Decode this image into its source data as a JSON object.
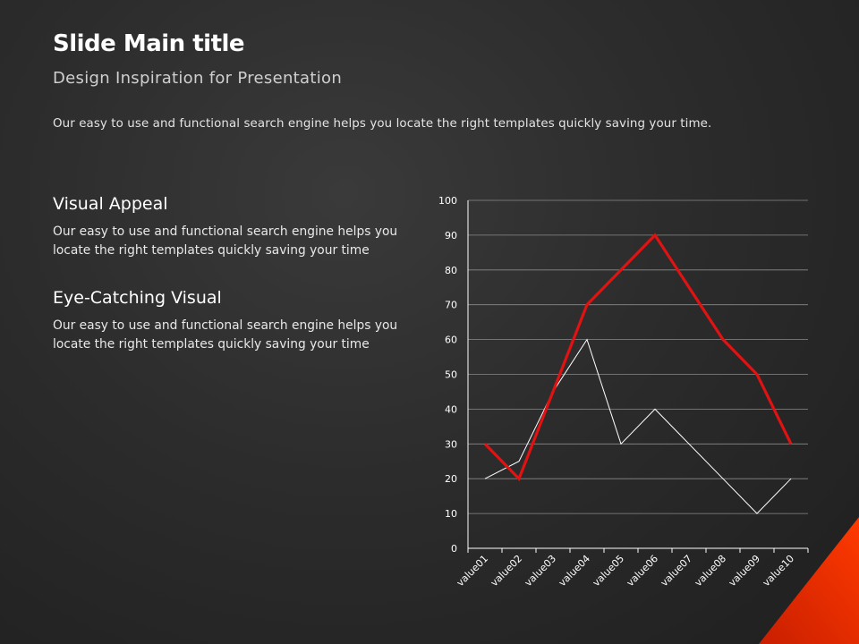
{
  "slide": {
    "title": "Slide Main title",
    "subtitle": "Design Inspiration for Presentation",
    "intro": "Our easy to use and functional search engine helps you locate the right templates quickly saving your time."
  },
  "sections": [
    {
      "heading": "Visual Appeal",
      "body": "Our easy to use and functional search engine helps you locate the right templates quickly saving your time"
    },
    {
      "heading": "Eye-Catching Visual",
      "body": "Our easy to use and functional search engine helps you locate the right templates quickly saving your time"
    }
  ],
  "colors": {
    "accent": "#e01212",
    "secondary_line": "#ffffff",
    "grid": "#8a8a8a",
    "corner": "#ff3a00"
  },
  "chart_data": {
    "type": "line",
    "categories": [
      "value01",
      "value02",
      "value03",
      "value04",
      "value05",
      "value06",
      "value07",
      "value08",
      "value09",
      "value10"
    ],
    "series": [
      {
        "values": [
          30,
          20,
          45,
          70,
          80,
          90,
          75,
          60,
          50,
          30
        ],
        "color": "#e01212"
      },
      {
        "values": [
          20,
          25,
          45,
          60,
          30,
          40,
          30,
          20,
          10,
          20
        ],
        "color": "#ffffff"
      }
    ],
    "ylim": [
      0,
      100
    ],
    "yticks": [
      0,
      10,
      20,
      30,
      40,
      50,
      60,
      70,
      80,
      90,
      100
    ],
    "grid": true,
    "legend": "none"
  }
}
